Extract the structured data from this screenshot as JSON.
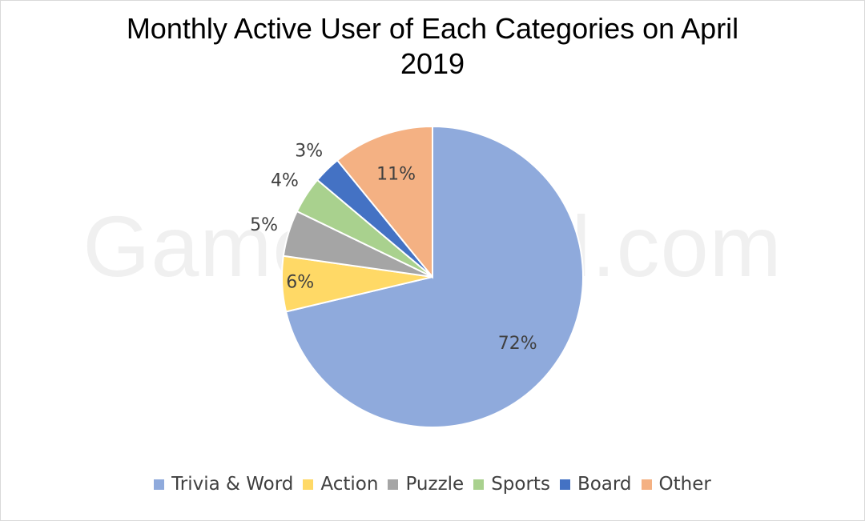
{
  "watermark": "GameDayfall.com",
  "chart_data": {
    "type": "pie",
    "title_lines": [
      "Monthly Active User of Each Categories on April",
      "2019"
    ],
    "slices": [
      {
        "name": "Trivia & Word",
        "value": 72,
        "label": "72%",
        "color": "#8FAADC"
      },
      {
        "name": "Action",
        "value": 6,
        "label": "6%",
        "color": "#FFD966"
      },
      {
        "name": "Puzzle",
        "value": 5,
        "label": "5%",
        "color": "#A5A5A5"
      },
      {
        "name": "Sports",
        "value": 4,
        "label": "4%",
        "color": "#A9D18E"
      },
      {
        "name": "Board",
        "value": 3,
        "label": "3%",
        "color": "#4472C4"
      },
      {
        "name": "Other",
        "value": 11,
        "label": "11%",
        "color": "#F4B183"
      }
    ],
    "legend_position": "bottom"
  }
}
